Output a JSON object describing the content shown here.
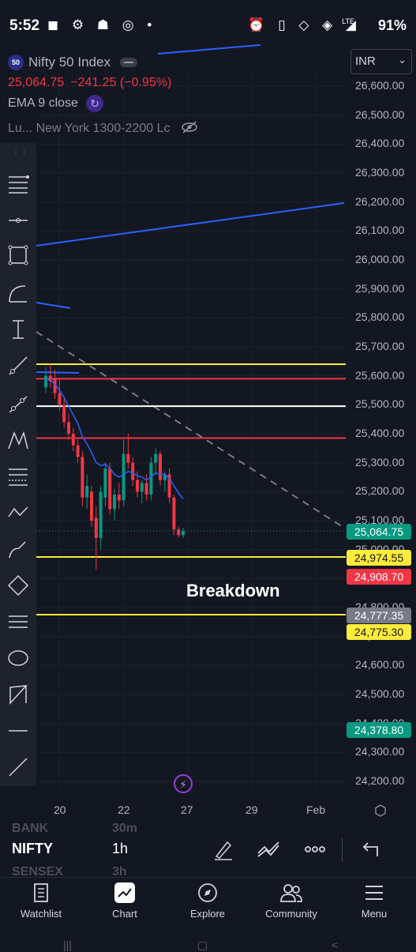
{
  "status_bar": {
    "time": "5:52",
    "network": "LTE",
    "battery": "91%"
  },
  "legend": {
    "badge": "50",
    "symbol_title": "Nifty 50 Index",
    "price": "25,064.75",
    "change": "−241.25 (−0.95%)",
    "ema": "EMA 9 close",
    "session": "Lu... New York 1300-2200 Lc"
  },
  "currency": "INR",
  "y_axis_ticks": [
    "26,600.00",
    "26,500.00",
    "26,400.00",
    "26,300.00",
    "26,200.00",
    "26,100.00",
    "26,000.00",
    "25,900.00",
    "25,800.00",
    "25,700.00",
    "25,600.00",
    "25,500.00",
    "25,400.00",
    "25,300.00",
    "25,200.00",
    "25,100.00",
    "25,000.00",
    "24,900.00",
    "24,800.00",
    "24,700.00",
    "24,600.00",
    "24,500.00",
    "24,400.00",
    "24,300.00",
    "24,200.00"
  ],
  "price_labels": [
    {
      "text": "25,064.75",
      "bg": "#089981",
      "fg": "#ffffff"
    },
    {
      "text": "24,974.55",
      "bg": "#ffeb3b",
      "fg": "#131722"
    },
    {
      "text": "24,908.70",
      "bg": "#f23645",
      "fg": "#ffffff"
    },
    {
      "text": "24,777.35",
      "bg": "#787b86",
      "fg": "#ffffff"
    },
    {
      "text": "24,775.30",
      "bg": "#ffeb3b",
      "fg": "#131722"
    },
    {
      "text": "24,378.80",
      "bg": "#089981",
      "fg": "#ffffff"
    }
  ],
  "x_axis_labels": [
    "20",
    "22",
    "27",
    "29",
    "Feb"
  ],
  "annotation": "Breakdown",
  "colors": {
    "background": "#131722",
    "up": "#089981",
    "down": "#f23645",
    "ema": "#2962ff",
    "yellow": "#ffeb3b",
    "white": "#ffffff"
  },
  "horizontal_levels": [
    {
      "price": 25640,
      "color": "#ffeb3b"
    },
    {
      "price": 25590,
      "color": "#f23645"
    },
    {
      "price": 25495,
      "color": "#ffffff"
    },
    {
      "price": 25385,
      "color": "#f23645"
    },
    {
      "price": 24974.55,
      "color": "#ffeb3b"
    },
    {
      "price": 24775.3,
      "color": "#ffeb3b"
    }
  ],
  "chart_data": {
    "type": "candlestick",
    "symbol": "Nifty 50 Index",
    "ylim": [
      24175,
      26700
    ],
    "candles": [
      {
        "o": 25560,
        "h": 25630,
        "l": 25540,
        "c": 25600
      },
      {
        "o": 25600,
        "h": 25640,
        "l": 25560,
        "c": 25580
      },
      {
        "o": 25590,
        "h": 25620,
        "l": 25520,
        "c": 25540
      },
      {
        "o": 25540,
        "h": 25590,
        "l": 25480,
        "c": 25500
      },
      {
        "o": 25500,
        "h": 25520,
        "l": 25420,
        "c": 25440
      },
      {
        "o": 25440,
        "h": 25470,
        "l": 25380,
        "c": 25400
      },
      {
        "o": 25400,
        "h": 25420,
        "l": 25340,
        "c": 25360
      },
      {
        "o": 25360,
        "h": 25380,
        "l": 25300,
        "c": 25320
      },
      {
        "o": 25320,
        "h": 25340,
        "l": 25150,
        "c": 25180
      },
      {
        "o": 25180,
        "h": 25260,
        "l": 25140,
        "c": 25220
      },
      {
        "o": 25200,
        "h": 25220,
        "l": 25080,
        "c": 25100
      },
      {
        "o": 25110,
        "h": 25150,
        "l": 24930,
        "c": 25040
      },
      {
        "o": 25040,
        "h": 25220,
        "l": 25000,
        "c": 25200
      },
      {
        "o": 25180,
        "h": 25300,
        "l": 25150,
        "c": 25280
      },
      {
        "o": 25280,
        "h": 25300,
        "l": 25120,
        "c": 25140
      },
      {
        "o": 25140,
        "h": 25210,
        "l": 25100,
        "c": 25190
      },
      {
        "o": 25190,
        "h": 25230,
        "l": 25140,
        "c": 25170
      },
      {
        "o": 25170,
        "h": 25380,
        "l": 25150,
        "c": 25330
      },
      {
        "o": 25330,
        "h": 25400,
        "l": 25280,
        "c": 25300
      },
      {
        "o": 25300,
        "h": 25320,
        "l": 25220,
        "c": 25240
      },
      {
        "o": 25240,
        "h": 25270,
        "l": 25180,
        "c": 25200
      },
      {
        "o": 25200,
        "h": 25240,
        "l": 25160,
        "c": 25230
      },
      {
        "o": 25230,
        "h": 25260,
        "l": 25170,
        "c": 25190
      },
      {
        "o": 25190,
        "h": 25320,
        "l": 25170,
        "c": 25300
      },
      {
        "o": 25300,
        "h": 25350,
        "l": 25260,
        "c": 25330
      },
      {
        "o": 25330,
        "h": 25340,
        "l": 25220,
        "c": 25240
      },
      {
        "o": 25240,
        "h": 25270,
        "l": 25200,
        "c": 25260
      },
      {
        "o": 25260,
        "h": 25280,
        "l": 25160,
        "c": 25180
      },
      {
        "o": 25180,
        "h": 25190,
        "l": 25050,
        "c": 25070
      },
      {
        "o": 25070,
        "h": 25080,
        "l": 25040,
        "c": 25050
      },
      {
        "o": 25050,
        "h": 25075,
        "l": 25040,
        "c": 25064.75
      }
    ],
    "ema_9": [
      25590,
      25585,
      25570,
      25550,
      25525,
      25495,
      25465,
      25435,
      25390,
      25365,
      25335,
      25300,
      25290,
      25295,
      25280,
      25260,
      25250,
      25260,
      25270,
      25265,
      25255,
      25250,
      25240,
      25250,
      25265,
      25260,
      25260,
      25245,
      25220,
      25195,
      25175
    ]
  }
}
